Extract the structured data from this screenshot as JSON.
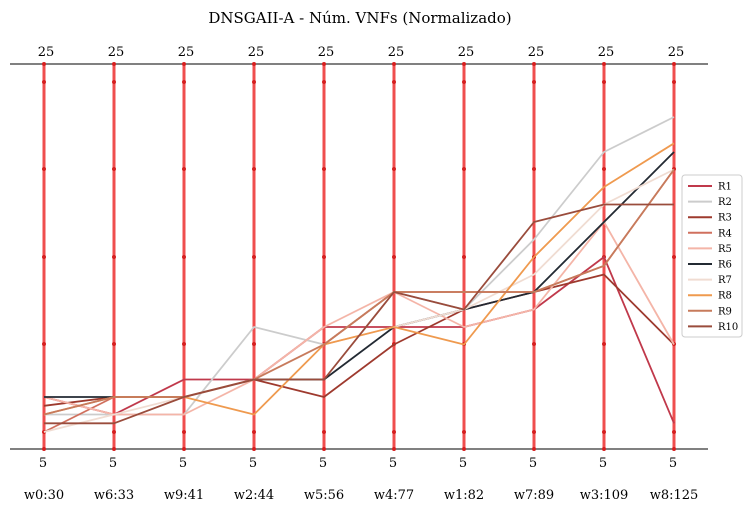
{
  "chart_data": {
    "type": "parallel_coordinates",
    "title": "DNSGAII-A - Núm. VNFs (Normalizado)",
    "axes": [
      "w0:30",
      "w6:33",
      "w9:41",
      "w2:44",
      "w5:56",
      "w4:77",
      "w1:82",
      "w7:89",
      "w3:109",
      "w8:125"
    ],
    "axis_top_label": "25",
    "axis_bottom_label": "5",
    "ylim": [
      5,
      25
    ],
    "axis_color": "#ee3b3b",
    "series": [
      {
        "name": "R1",
        "color": "#c0394b",
        "values": [
          7.0,
          6.0,
          8.0,
          8.0,
          11.0,
          11.0,
          11.0,
          12.0,
          15.0,
          5.5
        ]
      },
      {
        "name": "R2",
        "color": "#cccccc",
        "values": [
          6.0,
          6.0,
          6.0,
          11.0,
          10.0,
          13.0,
          12.0,
          16.0,
          21.0,
          23.0
        ]
      },
      {
        "name": "R3",
        "color": "#9e3a2e",
        "values": [
          6.5,
          7.0,
          7.0,
          8.0,
          7.0,
          10.0,
          12.0,
          13.0,
          14.0,
          10.0
        ]
      },
      {
        "name": "R4",
        "color": "#d0705e",
        "values": [
          5.0,
          7.0,
          7.0,
          8.0,
          10.0,
          13.0,
          13.0,
          13.0,
          14.5,
          20.0
        ]
      },
      {
        "name": "R5",
        "color": "#f4b5a8",
        "values": [
          7.0,
          6.0,
          6.0,
          8.0,
          11.0,
          13.0,
          11.0,
          12.0,
          17.0,
          10.0
        ]
      },
      {
        "name": "R6",
        "color": "#232a33",
        "values": [
          7.0,
          7.0,
          7.0,
          8.0,
          8.0,
          11.0,
          12.0,
          13.0,
          17.0,
          21.0
        ]
      },
      {
        "name": "R7",
        "color": "#f0dcd2",
        "values": [
          5.0,
          6.0,
          7.0,
          8.0,
          10.0,
          11.0,
          12.0,
          14.0,
          18.0,
          20.0
        ]
      },
      {
        "name": "R8",
        "color": "#ef9a4f",
        "values": [
          6.0,
          7.0,
          7.0,
          6.0,
          10.0,
          11.0,
          10.0,
          15.0,
          19.0,
          21.5
        ]
      },
      {
        "name": "R9",
        "color": "#c77b5c",
        "values": [
          6.0,
          7.0,
          7.0,
          8.0,
          10.0,
          13.0,
          13.0,
          13.0,
          14.5,
          20.0
        ]
      },
      {
        "name": "R10",
        "color": "#9a4c3c",
        "values": [
          5.5,
          5.5,
          7.0,
          8.0,
          8.0,
          13.0,
          12.0,
          17.0,
          18.0,
          18.0
        ]
      }
    ]
  }
}
